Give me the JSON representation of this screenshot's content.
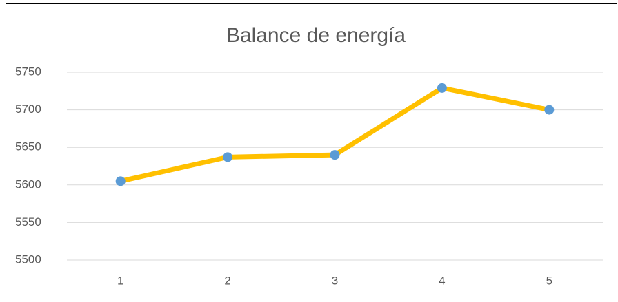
{
  "chart_data": {
    "type": "line",
    "title": "Balance de energía",
    "categories": [
      "1",
      "2",
      "3",
      "4",
      "5"
    ],
    "values": [
      5605,
      5637,
      5640,
      5729,
      5700
    ],
    "color": "#ffc000",
    "marker_color": "#5b9bd5",
    "ylim": [
      5500,
      5750
    ],
    "yticks": [
      5500,
      5550,
      5600,
      5650,
      5700,
      5750
    ],
    "grid": true
  }
}
